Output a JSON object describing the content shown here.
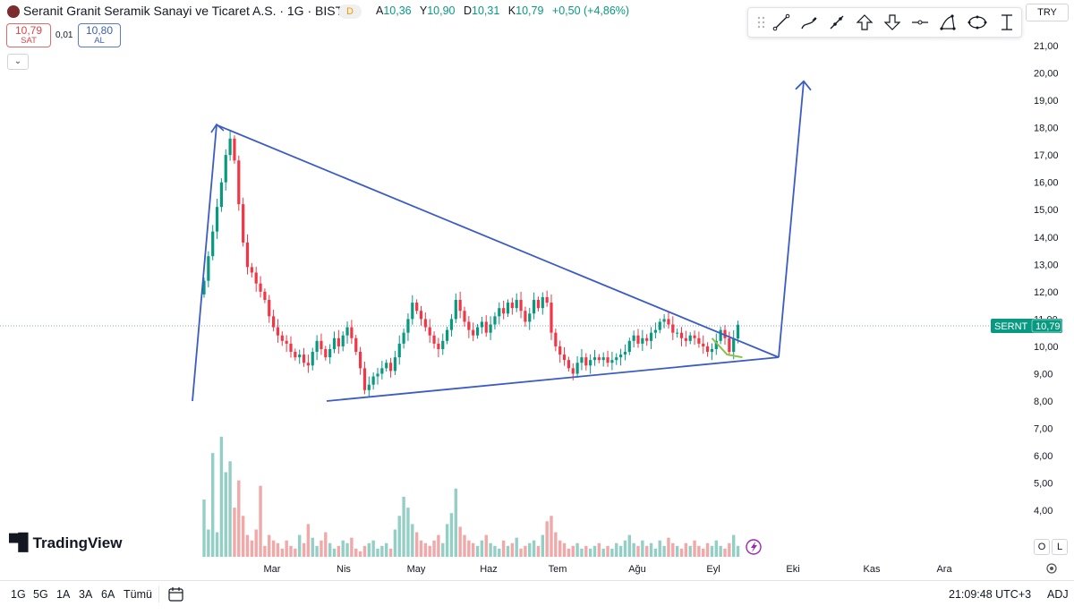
{
  "symbol": {
    "title": "Seranit Granit Seramik Sanayi ve Ticaret A.S. · 1G · BIST",
    "badge": "D",
    "ohlc": [
      {
        "k": "A",
        "v": "10,36"
      },
      {
        "k": "Y",
        "v": "10,90"
      },
      {
        "k": "D",
        "v": "10,31"
      },
      {
        "k": "K",
        "v": "10,79"
      }
    ],
    "change": "+0,50 (+4,86%)",
    "sell_price": "10,79",
    "sell_label": "SAT",
    "buy_price": "10,80",
    "buy_label": "AL",
    "spread": "0,01",
    "ticker": "SERNT",
    "last_price": "10,79"
  },
  "currency": "TRY",
  "colors": {
    "up": "#089981",
    "down": "#f23645",
    "vol_up": "#94cfc6",
    "vol_down": "#f0a8a8",
    "drawing": "#3b5cc4",
    "ma": "#8bc34a"
  },
  "toolbar_icons": [
    "drag-handle-icon",
    "trend-line-icon",
    "brush-icon",
    "ray-icon",
    "arrow-up-icon",
    "arrow-down-icon",
    "horizontal-line-icon",
    "path-icon",
    "ellipse-icon",
    "price-range-icon"
  ],
  "branding": "TradingView",
  "ol_buttons": [
    "O",
    "L"
  ],
  "bottom": {
    "ranges": [
      "1G",
      "5G",
      "1A",
      "3A",
      "6A",
      "Tümü"
    ],
    "time": "21:09:48 UTC+3",
    "adj": "ADJ"
  },
  "chart_data": {
    "type": "candlestick",
    "y_axis_ticks": [
      "21,00",
      "20,00",
      "19,00",
      "18,00",
      "17,00",
      "16,00",
      "15,00",
      "14,00",
      "13,00",
      "12,00",
      "11,00",
      "10,00",
      "9,00",
      "8,00",
      "7,00",
      "6,00",
      "5,00",
      "4,00"
    ],
    "x_axis_labels": [
      "Mar",
      "Nis",
      "May",
      "Haz",
      "Tem",
      "Ağu",
      "Eyl",
      "Eki",
      "Kas",
      "Ara"
    ],
    "ylim": [
      3.4,
      21.8
    ],
    "close_series": [
      12.4,
      13.3,
      14.2,
      15.1,
      16.0,
      17.0,
      17.6,
      16.8,
      15.2,
      13.8,
      12.9,
      12.7,
      12.3,
      12.0,
      11.7,
      11.1,
      10.7,
      10.4,
      10.2,
      10.1,
      9.8,
      9.6,
      9.7,
      9.4,
      9.3,
      9.8,
      10.2,
      9.9,
      9.6,
      9.9,
      10.3,
      10.0,
      10.4,
      10.7,
      10.3,
      9.8,
      9.2,
      8.4,
      8.6,
      8.9,
      9.0,
      9.2,
      9.4,
      9.1,
      9.6,
      10.1,
      10.5,
      11.0,
      11.6,
      11.3,
      11.0,
      10.7,
      10.4,
      10.1,
      9.9,
      10.2,
      10.6,
      11.0,
      11.7,
      11.3,
      10.9,
      10.6,
      10.4,
      10.7,
      10.9,
      10.5,
      10.8,
      11.1,
      11.4,
      11.2,
      11.6,
      11.4,
      11.7,
      11.3,
      10.9,
      11.2,
      11.7,
      11.4,
      11.8,
      11.6,
      10.5,
      10.0,
      9.7,
      9.5,
      9.2,
      9.0,
      9.4,
      9.6,
      9.3,
      9.5,
      9.6,
      9.5,
      9.6,
      9.4,
      9.5,
      9.6,
      9.7,
      9.8,
      10.2,
      10.4,
      10.1,
      10.3,
      10.2,
      10.5,
      10.6,
      10.9,
      11.0,
      10.8,
      10.5,
      10.5,
      10.3,
      10.2,
      10.4,
      10.3,
      10.1,
      10.0,
      9.8,
      9.9,
      10.2,
      10.6,
      10.3,
      9.8,
      10.29,
      10.79
    ],
    "ma_series": [
      {
        "name": "",
        "points": [
          [
            10.0,
            10.3
          ],
          [
            9.8,
            9.7
          ],
          [
            9.7,
            9.6
          ]
        ]
      }
    ],
    "volume_series": [
      5.1,
      4.0,
      6.8,
      3.9,
      7.4,
      6.1,
      6.5,
      4.8,
      5.8,
      4.5,
      3.8,
      3.6,
      4.0,
      5.6,
      3.4,
      3.8,
      3.6,
      3.5,
      3.3,
      3.6,
      3.4,
      3.3,
      3.8,
      3.5,
      4.2,
      3.7,
      3.4,
      3.6,
      3.9,
      3.5,
      3.3,
      3.4,
      3.6,
      3.5,
      3.7,
      3.3,
      3.2,
      3.4,
      3.5,
      3.6,
      3.3,
      3.4,
      3.5,
      3.3,
      4.0,
      4.5,
      5.2,
      4.8,
      4.2,
      3.9,
      3.6,
      3.5,
      3.4,
      3.6,
      3.8,
      3.5,
      4.2,
      4.6,
      5.5,
      4.1,
      3.8,
      3.6,
      3.5,
      3.4,
      3.6,
      3.8,
      3.5,
      3.4,
      3.3,
      3.6,
      3.4,
      3.5,
      3.7,
      3.3,
      3.4,
      3.5,
      3.6,
      3.4,
      3.8,
      4.3,
      4.5,
      3.9,
      3.6,
      3.5,
      3.3,
      3.4,
      3.5,
      3.3,
      3.4,
      3.3,
      3.4,
      3.5,
      3.3,
      3.4,
      3.3,
      3.5,
      3.4,
      3.6,
      3.8,
      3.5,
      3.4,
      3.6,
      3.4,
      3.5,
      3.3,
      3.6,
      3.4,
      3.7,
      3.5,
      3.4,
      3.3,
      3.5,
      3.4,
      3.6,
      3.4,
      3.3,
      3.5,
      3.4,
      3.6,
      3.4,
      3.3,
      3.5,
      3.8,
      3.4
    ],
    "drawings": [
      {
        "type": "line",
        "points": [
          [
            0,
            8.0
          ],
          [
            6,
            18.1
          ]
        ]
      },
      {
        "type": "line",
        "points": [
          [
            6,
            18.1
          ],
          [
            124,
            9.6
          ]
        ]
      },
      {
        "type": "line",
        "points": [
          [
            37,
            8.0
          ],
          [
            124,
            9.6
          ]
        ]
      },
      {
        "type": "arrow",
        "points": [
          [
            124,
            9.6
          ],
          [
            130,
            19.7
          ]
        ]
      }
    ]
  }
}
